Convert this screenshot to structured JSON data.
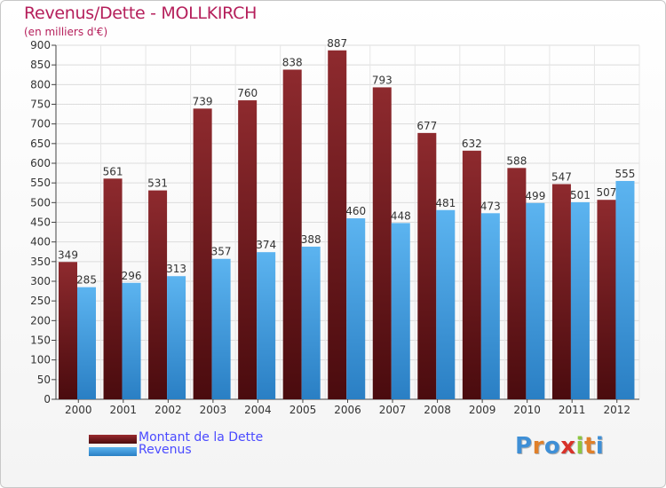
{
  "header": {
    "title": "Revenus/Dette - MOLLKIRCH",
    "subtitle": "(en milliers d'€)"
  },
  "logo": {
    "letters": [
      "P",
      "r",
      "o",
      "x",
      "i",
      "t",
      "i"
    ],
    "colors": [
      "#3f8fd6",
      "#e0802a",
      "#3f8fd6",
      "#d8322a",
      "#8cc63f",
      "#e0802a",
      "#3f8fd6"
    ]
  },
  "chart_data": {
    "type": "bar",
    "title": "Revenus/Dette - MOLLKIRCH",
    "subtitle": "(en milliers d'€)",
    "categories": [
      "2000",
      "2001",
      "2002",
      "2003",
      "2004",
      "2005",
      "2006",
      "2007",
      "2008",
      "2009",
      "2010",
      "2011",
      "2012"
    ],
    "series": [
      {
        "name": "Montant de la Dette",
        "color": "#7a1f22",
        "values": [
          349,
          561,
          531,
          739,
          760,
          838,
          887,
          793,
          677,
          632,
          588,
          547,
          507
        ]
      },
      {
        "name": "Revenus",
        "color": "#4aa3e6",
        "values": [
          285,
          296,
          313,
          357,
          374,
          388,
          460,
          448,
          481,
          473,
          499,
          501,
          555
        ]
      }
    ],
    "ylim": [
      0,
      900
    ],
    "yticks": [
      0,
      50,
      100,
      150,
      200,
      250,
      300,
      350,
      400,
      450,
      500,
      550,
      600,
      650,
      700,
      750,
      800,
      850,
      900
    ],
    "grid": true,
    "legend": "bottom-left"
  }
}
